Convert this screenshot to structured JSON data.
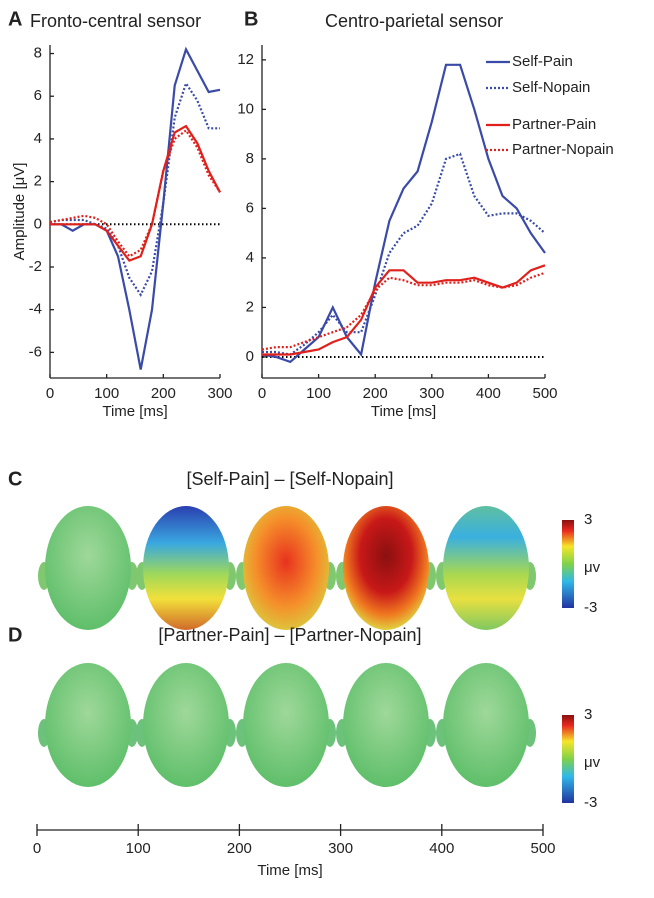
{
  "chart_data": [
    {
      "type": "line",
      "letter": "A",
      "title": "Fronto-central sensor",
      "xlabel": "Time [ms]",
      "ylabel": "Amplitude [μV]",
      "x": [
        0,
        20,
        40,
        60,
        80,
        100,
        120,
        140,
        160,
        180,
        200,
        220,
        240,
        260,
        280,
        300
      ],
      "xlim": [
        0,
        300
      ],
      "xticks": [
        0,
        100,
        200,
        300
      ],
      "ylim": [
        -7.2,
        8.4
      ],
      "yticks": [
        -6,
        -4,
        -2,
        0,
        2,
        4,
        6,
        8
      ],
      "hline": 0,
      "series": [
        {
          "name": "Self-Pain",
          "color": "#3a4aa8",
          "dash": false,
          "values": [
            0,
            0,
            -0.3,
            0,
            0,
            -0.3,
            -1.5,
            -4,
            -6.8,
            -4,
            1,
            6.5,
            8.2,
            7.2,
            6.2,
            6.3
          ]
        },
        {
          "name": "Self-Nopain",
          "color": "#3a4aa8",
          "dash": true,
          "values": [
            0.1,
            0.2,
            0.2,
            0.2,
            0,
            -0.2,
            -1,
            -2.5,
            -3.3,
            -2.2,
            1,
            5,
            6.6,
            5.8,
            4.5,
            4.5
          ]
        },
        {
          "name": "Partner-Pain",
          "color": "#e0201b",
          "dash": false,
          "values": [
            0,
            0,
            0,
            0,
            0,
            -0.3,
            -1,
            -1.7,
            -1.5,
            0,
            2.5,
            4.3,
            4.6,
            3.8,
            2.5,
            1.5
          ]
        },
        {
          "name": "Partner-Nopain",
          "color": "#e0201b",
          "dash": true,
          "values": [
            0.1,
            0.2,
            0.3,
            0.4,
            0.3,
            0,
            -0.8,
            -1.5,
            -1.2,
            0,
            2.5,
            4,
            4.4,
            3.6,
            2.3,
            1.5
          ]
        }
      ]
    },
    {
      "type": "line",
      "letter": "B",
      "title": "Centro-parietal sensor",
      "xlabel": "Time [ms]",
      "legend": "top-right",
      "x": [
        0,
        25,
        50,
        75,
        100,
        125,
        150,
        175,
        200,
        225,
        250,
        275,
        300,
        325,
        350,
        375,
        400,
        425,
        450,
        475,
        500
      ],
      "xlim": [
        0,
        500
      ],
      "xticks": [
        0,
        100,
        200,
        300,
        400,
        500
      ],
      "ylim": [
        -0.85,
        12.6
      ],
      "yticks": [
        0,
        2,
        4,
        6,
        8,
        10,
        12
      ],
      "hline": 0,
      "series": [
        {
          "name": "Self-Pain",
          "color": "#3a4aa8",
          "dash": false,
          "values": [
            0.1,
            0,
            -0.2,
            0.3,
            0.8,
            2,
            0.8,
            0.1,
            3,
            5.5,
            6.8,
            7.5,
            9.5,
            11.8,
            11.8,
            10,
            8,
            6.5,
            6,
            5,
            4.2
          ]
        },
        {
          "name": "Self-Nopain",
          "color": "#3a4aa8",
          "dash": true,
          "values": [
            0.2,
            0.2,
            0.1,
            0.5,
            1,
            1.7,
            1,
            1,
            2.5,
            4.2,
            5,
            5.3,
            6.2,
            8,
            8.2,
            6.5,
            5.7,
            5.8,
            5.8,
            5.5,
            5
          ]
        },
        {
          "name": "Partner-Pain",
          "color": "#e0201b",
          "dash": false,
          "values": [
            0.1,
            0.1,
            0.1,
            0.2,
            0.3,
            0.6,
            0.8,
            1.5,
            2.8,
            3.5,
            3.5,
            3,
            3,
            3.1,
            3.1,
            3.2,
            3,
            2.8,
            3,
            3.5,
            3.7
          ]
        },
        {
          "name": "Partner-Nopain",
          "color": "#e0201b",
          "dash": true,
          "values": [
            0.3,
            0.4,
            0.4,
            0.6,
            0.8,
            1,
            1.2,
            1.7,
            2.7,
            3.2,
            3.1,
            2.9,
            2.9,
            3,
            3,
            3.1,
            2.9,
            2.8,
            2.9,
            3.2,
            3.4
          ]
        }
      ]
    }
  ],
  "topo_maps": [
    {
      "letter": "C",
      "title": "[Self-Pain] – [Self-Nopain]",
      "colorbar": {
        "lim": [
          -3,
          3
        ],
        "ticks": [
          3,
          -3
        ],
        "label": "μv"
      }
    },
    {
      "letter": "D",
      "title": "[Partner-Pain] – [Partner-Nopain]",
      "colorbar": {
        "lim": [
          -3,
          3
        ],
        "ticks": [
          3,
          -3
        ],
        "label": "μv"
      }
    }
  ],
  "time_axis": {
    "xlim": [
      0,
      500
    ],
    "xticks": [
      0,
      100,
      200,
      300,
      400,
      500
    ],
    "xlabel": "Time [ms]"
  }
}
